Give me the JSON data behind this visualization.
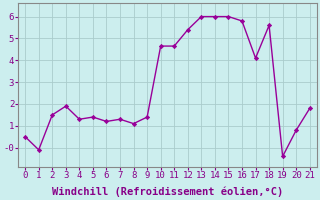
{
  "x": [
    0,
    1,
    2,
    3,
    4,
    5,
    6,
    7,
    8,
    9,
    10,
    11,
    12,
    13,
    14,
    15,
    16,
    17,
    18,
    19,
    20,
    21
  ],
  "y": [
    0.5,
    -0.1,
    1.5,
    1.9,
    1.3,
    1.4,
    1.2,
    1.3,
    1.1,
    1.4,
    4.65,
    4.65,
    5.4,
    6.0,
    6.0,
    6.0,
    5.8,
    4.1,
    5.6,
    -0.4,
    0.8,
    1.8
  ],
  "line_color": "#990099",
  "marker": "D",
  "marker_size": 2.2,
  "bg_color": "#cceeee",
  "grid_color": "#aacccc",
  "xlabel": "Windchill (Refroidissement éolien,°C)",
  "xlabel_fontsize": 7.5,
  "tick_fontsize": 6.5,
  "xlim": [
    -0.5,
    21.5
  ],
  "ylim": [
    -0.9,
    6.6
  ],
  "yticks": [
    0,
    1,
    2,
    3,
    4,
    5,
    6
  ],
  "ytick_labels": [
    "-0",
    "1",
    "2",
    "3",
    "4",
    "5",
    "6"
  ],
  "xticks": [
    0,
    1,
    2,
    3,
    4,
    5,
    6,
    7,
    8,
    9,
    10,
    11,
    12,
    13,
    14,
    15,
    16,
    17,
    18,
    19,
    20,
    21
  ],
  "line_width": 1.0,
  "spine_color": "#888888",
  "label_color": "#880088"
}
